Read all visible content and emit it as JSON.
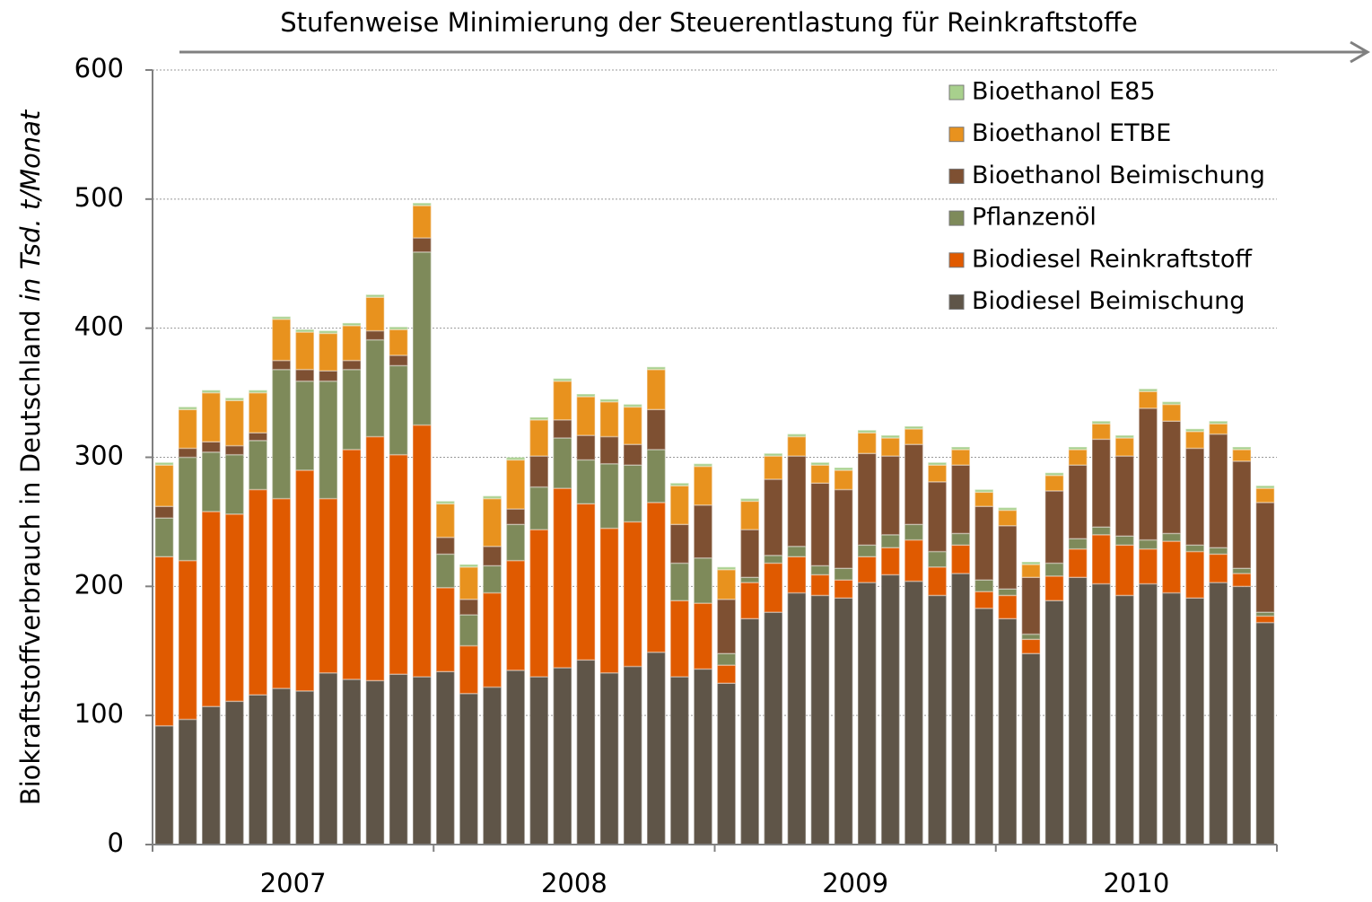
{
  "chart_data": {
    "type": "stacked_bar",
    "annotation": "Stufenweise Minimierung der Steuerentlastung für Reinkraftstoffe",
    "ylabel": "Biokraftstoffverbrauch in Deutschland",
    "ylabel_unit": "in Tsd. t/Monat",
    "categories": [
      null,
      null,
      null,
      null,
      null,
      null,
      null,
      null,
      null,
      null,
      null,
      null,
      null,
      null,
      null,
      null,
      null,
      null,
      null,
      null,
      null,
      null,
      null,
      null,
      null,
      null,
      null,
      null,
      null,
      null,
      null,
      null,
      null,
      null,
      null,
      null,
      null,
      null,
      null,
      null,
      null,
      null,
      null,
      null,
      null,
      null,
      null,
      null
    ],
    "groups": [
      "2007",
      "2008",
      "2009",
      "2010"
    ],
    "ylim": [
      0,
      600
    ],
    "yticks": [
      0,
      100,
      200,
      300,
      400,
      500,
      600
    ],
    "grid": true,
    "legend": "top-right",
    "series": [
      {
        "name": "Biodiesel Beimischung",
        "color": "#5f5548",
        "values": [
          92,
          97,
          107,
          111,
          116,
          121,
          119,
          133,
          128,
          127,
          132,
          130,
          134,
          117,
          122,
          135,
          130,
          137,
          143,
          133,
          138,
          149,
          130,
          136,
          125,
          175,
          180,
          195,
          193,
          191,
          203,
          209,
          204,
          193,
          210,
          183,
          175,
          148,
          189,
          207,
          202,
          193,
          202,
          195,
          191,
          203,
          200,
          172
        ]
      },
      {
        "name": "Biodiesel Reinkraftstoff",
        "color": "#e05a00",
        "values": [
          131,
          123,
          151,
          145,
          159,
          147,
          171,
          135,
          178,
          189,
          170,
          195,
          65,
          37,
          73,
          85,
          114,
          139,
          121,
          112,
          112,
          116,
          59,
          51,
          14,
          28,
          38,
          28,
          16,
          14,
          20,
          21,
          32,
          22,
          22,
          13,
          18,
          11,
          19,
          22,
          38,
          39,
          27,
          40,
          36,
          22,
          10,
          5
        ]
      },
      {
        "name": "Pflanzenöl",
        "color": "#7e8a5a",
        "values": [
          30,
          80,
          46,
          46,
          38,
          100,
          69,
          91,
          62,
          75,
          69,
          134,
          26,
          24,
          21,
          28,
          33,
          39,
          34,
          50,
          44,
          41,
          29,
          35,
          9,
          4,
          6,
          8,
          7,
          9,
          9,
          10,
          12,
          12,
          9,
          9,
          5,
          4,
          10,
          8,
          6,
          7,
          7,
          6,
          5,
          5,
          4,
          3
        ]
      },
      {
        "name": "Bioethanol Beimischung",
        "color": "#7e5032",
        "values": [
          9,
          7,
          8,
          7,
          6,
          7,
          9,
          8,
          7,
          7,
          8,
          11,
          13,
          12,
          15,
          12,
          24,
          14,
          19,
          21,
          16,
          31,
          30,
          41,
          42,
          37,
          59,
          70,
          64,
          61,
          71,
          61,
          62,
          54,
          53,
          57,
          49,
          44,
          56,
          57,
          68,
          62,
          102,
          87,
          75,
          88,
          83,
          85
        ]
      },
      {
        "name": "Bioethanol ETBE",
        "color": "#e8921e",
        "values": [
          32,
          30,
          38,
          35,
          31,
          32,
          29,
          29,
          27,
          26,
          20,
          25,
          26,
          25,
          37,
          38,
          28,
          30,
          30,
          27,
          29,
          31,
          30,
          30,
          23,
          22,
          18,
          15,
          14,
          15,
          16,
          14,
          12,
          13,
          12,
          11,
          12,
          10,
          12,
          12,
          12,
          14,
          13,
          13,
          13,
          8,
          9,
          11
        ]
      },
      {
        "name": "Bioethanol E85",
        "color": "#a8d08d",
        "values": [
          2,
          2,
          2,
          2,
          2,
          2,
          2,
          2,
          2,
          2,
          2,
          2,
          2,
          2,
          2,
          2,
          2,
          2,
          2,
          2,
          2,
          2,
          2,
          2,
          2,
          2,
          2,
          2,
          2,
          2,
          2,
          2,
          2,
          2,
          2,
          2,
          2,
          2,
          2,
          2,
          2,
          2,
          2,
          2,
          2,
          2,
          2,
          2
        ]
      }
    ]
  }
}
